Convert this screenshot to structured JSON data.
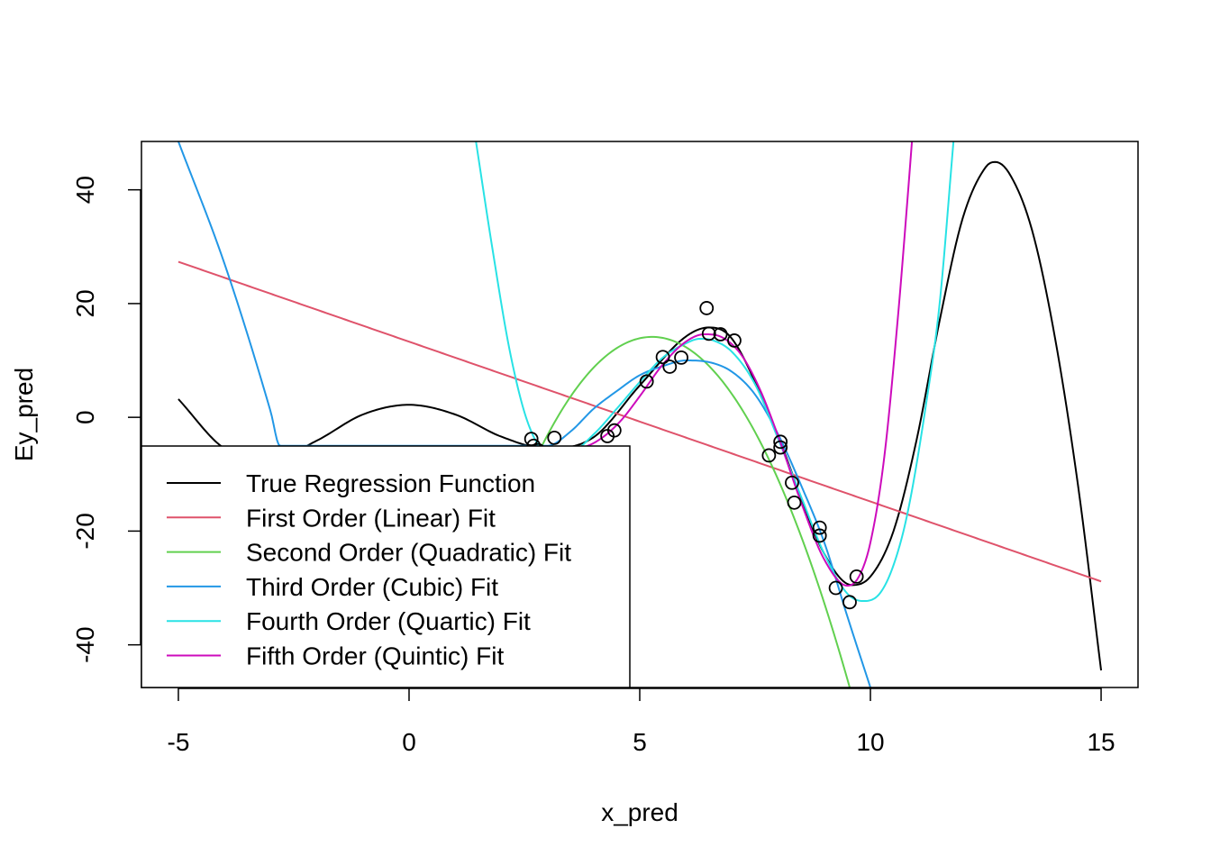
{
  "chart_data": {
    "type": "line",
    "xlabel": "x_pred",
    "ylabel": "Ey_pred",
    "xlim": [
      -5.8,
      15.8
    ],
    "ylim": [
      -47.5,
      48.5
    ],
    "x_ticks": [
      "-5",
      "0",
      "5",
      "10",
      "15"
    ],
    "y_ticks": [
      "-40",
      "-20",
      "0",
      "20",
      "40"
    ],
    "grid": false,
    "legend_position": "bottom-left",
    "series": [
      {
        "name": "True Regression Function",
        "color": "#000000",
        "x_range": [
          -5,
          15
        ],
        "points": [
          [
            -5,
            3.2
          ],
          [
            -4,
            -5.5
          ],
          [
            -3,
            -7.5
          ],
          [
            -2,
            -4.1
          ],
          [
            -1,
            0.5
          ],
          [
            0,
            2.2
          ],
          [
            1,
            0.5
          ],
          [
            2,
            -3.4
          ],
          [
            3,
            -5.5
          ],
          [
            4,
            -3.5
          ],
          [
            5,
            5.6
          ],
          [
            6,
            14.2
          ],
          [
            6.5,
            15.8
          ],
          [
            7,
            13.8
          ],
          [
            8,
            -3.5
          ],
          [
            9,
            -24
          ],
          [
            9.6,
            -29.5
          ],
          [
            10,
            -28
          ],
          [
            10.5,
            -20
          ],
          [
            11,
            -4
          ],
          [
            11.5,
            17
          ],
          [
            12,
            35
          ],
          [
            12.5,
            44
          ],
          [
            12.7,
            44.9
          ],
          [
            13,
            43
          ],
          [
            13.5,
            33
          ],
          [
            14,
            14
          ],
          [
            14.5,
            -12
          ],
          [
            15,
            -44.5
          ]
        ]
      },
      {
        "name": "First Order (Linear) Fit",
        "color": "#DF536B",
        "x_range": [
          -5,
          15
        ],
        "coefficients": [
          13.3,
          -2.81
        ]
      },
      {
        "name": "Second Order (Quadratic) Fit",
        "color": "#61D04F",
        "x_range": [
          -5,
          15
        ],
        "coefficients": [
          -79.1,
          35.4,
          -3.36
        ]
      },
      {
        "name": "Third Order (Cubic) Fit",
        "color": "#2297E6",
        "x_range": [
          -5,
          15
        ],
        "points": [
          [
            -5,
            48.5
          ],
          [
            -4,
            27
          ],
          [
            -3,
            1
          ],
          [
            -2.8,
            -5
          ],
          [
            3,
            -5
          ],
          [
            3.5,
            -2.5
          ],
          [
            4,
            1.5
          ],
          [
            4.5,
            4.6
          ],
          [
            5,
            7.4
          ],
          [
            5.5,
            9
          ],
          [
            6,
            10
          ],
          [
            6.5,
            9.7
          ],
          [
            7,
            8
          ],
          [
            7.5,
            4
          ],
          [
            8,
            -3
          ],
          [
            8.5,
            -12
          ],
          [
            9,
            -22
          ],
          [
            9.5,
            -35
          ],
          [
            10,
            -47.5
          ]
        ]
      },
      {
        "name": "Fourth Order (Quartic) Fit",
        "color": "#28E2E5",
        "x_range": [
          -5,
          15
        ],
        "points": [
          [
            1.45,
            48.5
          ],
          [
            1.8,
            30
          ],
          [
            2.2,
            11
          ],
          [
            2.6,
            -1.5
          ],
          [
            3,
            -6
          ],
          [
            3.5,
            -6
          ],
          [
            4,
            -3
          ],
          [
            4.5,
            1.5
          ],
          [
            5,
            6.2
          ],
          [
            5.5,
            10.5
          ],
          [
            6,
            13
          ],
          [
            6.3,
            13.8
          ],
          [
            6.6,
            13.5
          ],
          [
            7,
            11.5
          ],
          [
            7.5,
            5.8
          ],
          [
            8,
            -3.8
          ],
          [
            8.5,
            -14
          ],
          [
            9,
            -24
          ],
          [
            9.5,
            -31
          ],
          [
            9.85,
            -32.3
          ],
          [
            10.2,
            -31
          ],
          [
            10.5,
            -26
          ],
          [
            10.8,
            -17
          ],
          [
            11.2,
            2
          ],
          [
            11.5,
            20
          ],
          [
            11.8,
            48.5
          ]
        ]
      },
      {
        "name": "Fifth Order (Quintic) Fit",
        "color": "#CD0BBC",
        "x_range": [
          -5,
          15
        ],
        "points": [
          [
            3.4,
            -5.5
          ],
          [
            3.8,
            -5.2
          ],
          [
            4.2,
            -3.5
          ],
          [
            4.6,
            -0.5
          ],
          [
            5,
            3.7
          ],
          [
            5.5,
            9.3
          ],
          [
            6,
            13.3
          ],
          [
            6.4,
            14.6
          ],
          [
            6.8,
            14
          ],
          [
            7.2,
            11
          ],
          [
            7.6,
            5
          ],
          [
            8,
            -3.3
          ],
          [
            8.5,
            -15
          ],
          [
            9,
            -25
          ],
          [
            9.5,
            -29.6
          ],
          [
            9.75,
            -28
          ],
          [
            10,
            -22
          ],
          [
            10.3,
            -7
          ],
          [
            10.6,
            18
          ],
          [
            10.8,
            38
          ],
          [
            10.9,
            48.5
          ]
        ]
      }
    ],
    "observations": [
      [
        2.65,
        -3.8
      ],
      [
        2.7,
        -5.0
      ],
      [
        2.8,
        -5.8
      ],
      [
        3.15,
        -3.6
      ],
      [
        4.3,
        -3.3
      ],
      [
        4.45,
        -2.3
      ],
      [
        5.15,
        6.3
      ],
      [
        5.5,
        10.6
      ],
      [
        5.65,
        8.9
      ],
      [
        5.9,
        10.5
      ],
      [
        6.45,
        19.2
      ],
      [
        6.5,
        14.7
      ],
      [
        6.75,
        14.6
      ],
      [
        7.05,
        13.5
      ],
      [
        7.8,
        -6.7
      ],
      [
        8.05,
        -4.3
      ],
      [
        8.05,
        -5.3
      ],
      [
        8.3,
        -11.5
      ],
      [
        8.35,
        -15.0
      ],
      [
        8.9,
        -19.4
      ],
      [
        8.9,
        -20.8
      ],
      [
        9.25,
        -30.0
      ],
      [
        9.55,
        -32.5
      ],
      [
        9.7,
        -28.0
      ]
    ]
  }
}
